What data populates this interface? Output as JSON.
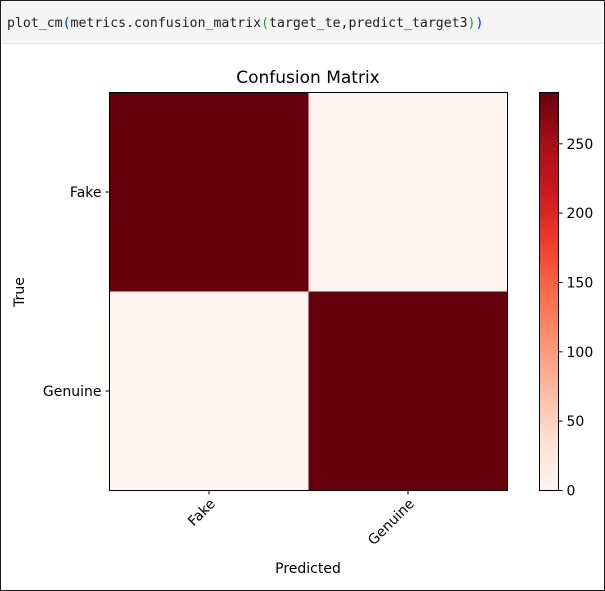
{
  "code_cell": {
    "prefix": "plot_cm",
    "open_paren_outer": "(",
    "middle": "metrics.confusion_matrix",
    "open_paren_inner": "(",
    "args": "target_te,predict_target3",
    "close_paren_inner": ")",
    "close_paren_outer": ")"
  },
  "chart_data": {
    "type": "heatmap",
    "title": "Confusion Matrix",
    "xlabel": "Predicted",
    "ylabel": "True",
    "x_categories": [
      "Fake",
      "Genuine"
    ],
    "y_categories": [
      "Fake",
      "Genuine"
    ],
    "values": [
      [
        287,
        0
      ],
      [
        0,
        287
      ]
    ],
    "colormap": "Reds",
    "colorbar": {
      "range": [
        0,
        287
      ],
      "ticks": [
        0,
        50,
        100,
        150,
        200,
        250
      ],
      "tick_labels": [
        "0",
        "50",
        "100",
        "150",
        "200",
        "250"
      ]
    },
    "x_tick_rotation": 45,
    "grid": false
  },
  "colors": {
    "high": "#67000d",
    "low": "#fff5f0"
  }
}
